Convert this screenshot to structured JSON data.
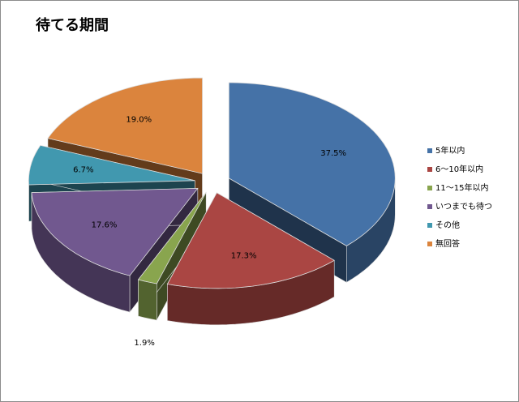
{
  "chart_data": {
    "type": "pie3d",
    "title": "待てる期間",
    "categories": [
      "5年以内",
      "6～10年以内",
      "11～15年以内",
      "いつまでも待つ",
      "その他",
      "無回答"
    ],
    "values": [
      37.5,
      17.3,
      1.9,
      17.6,
      6.7,
      19.0
    ],
    "value_labels": [
      "37.5%",
      "17.3%",
      "1.9%",
      "17.6%",
      "6.7%",
      "19.0%"
    ],
    "colors": [
      "#4572a7",
      "#aa4643",
      "#89a54e",
      "#71588f",
      "#4198af",
      "#db843d"
    ],
    "legend": "right"
  }
}
